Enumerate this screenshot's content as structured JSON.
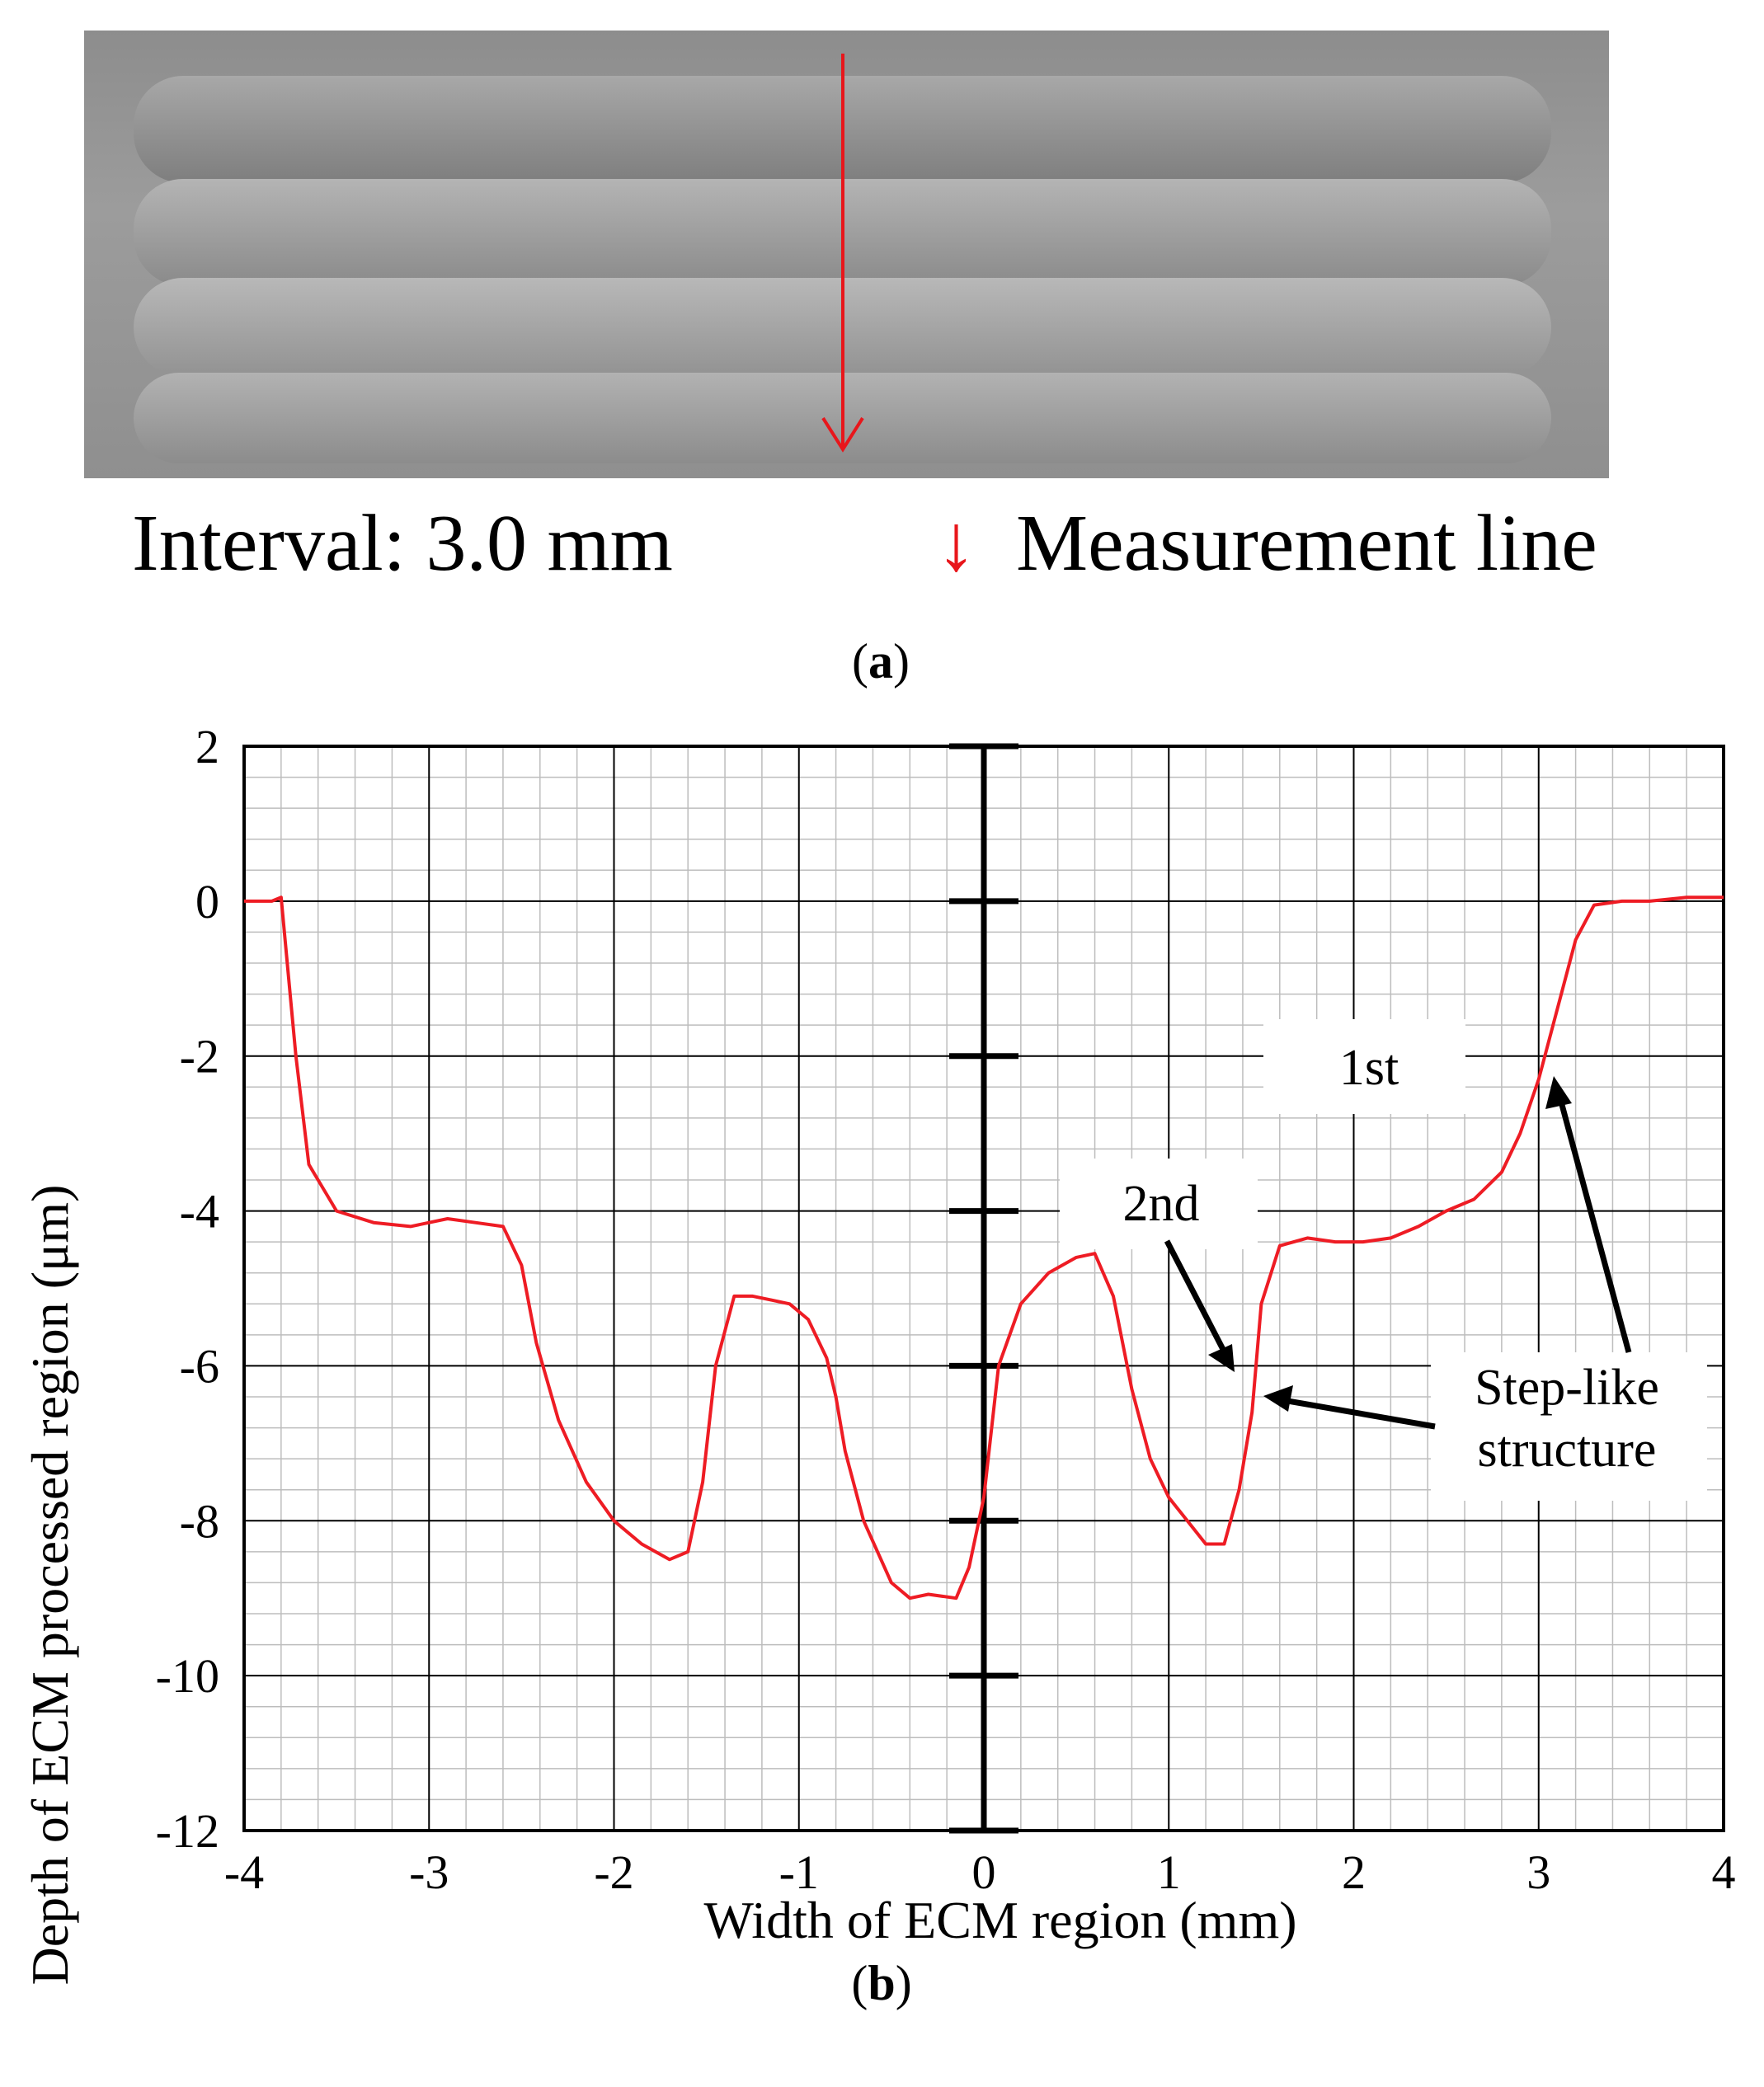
{
  "panel_a": {
    "label_letter": "a",
    "interval_text": "Interval: 3.0 mm",
    "arrow_glyph": "↓",
    "measurement_text": "Measurement line",
    "arrow_color": "#e8161b"
  },
  "panel_b": {
    "label_letter": "b"
  },
  "chart_data": {
    "type": "line",
    "title": "",
    "xlabel": "Width of ECM region (mm)",
    "ylabel": "Depth of ECM processed region (μm)",
    "xlim": [
      -4,
      4
    ],
    "ylim": [
      -12,
      2
    ],
    "xticks": [
      -4,
      -3,
      -2,
      -1,
      0,
      1,
      2,
      3,
      4
    ],
    "yticks": [
      2,
      0,
      -2,
      -4,
      -6,
      -8,
      -10,
      -12
    ],
    "grid": true,
    "center_axis_x": 0,
    "series": [
      {
        "color": "#ee1c24",
        "x": [
          -4.0,
          -3.85,
          -3.8,
          -3.72,
          -3.65,
          -3.5,
          -3.3,
          -3.1,
          -2.9,
          -2.75,
          -2.6,
          -2.5,
          -2.42,
          -2.3,
          -2.15,
          -2.0,
          -1.85,
          -1.7,
          -1.6,
          -1.52,
          -1.45,
          -1.35,
          -1.25,
          -1.15,
          -1.05,
          -0.95,
          -0.85,
          -0.8,
          -0.75,
          -0.65,
          -0.5,
          -0.4,
          -0.3,
          -0.15,
          -0.08,
          0.0,
          0.08,
          0.2,
          0.35,
          0.5,
          0.6,
          0.7,
          0.8,
          0.9,
          1.0,
          1.1,
          1.2,
          1.3,
          1.38,
          1.45,
          1.5,
          1.6,
          1.75,
          1.9,
          2.05,
          2.2,
          2.35,
          2.5,
          2.65,
          2.8,
          2.9,
          3.0,
          3.1,
          3.2,
          3.3,
          3.45,
          3.6,
          3.8,
          4.0
        ],
        "y": [
          0.0,
          0.0,
          0.05,
          -2.0,
          -3.4,
          -4.0,
          -4.15,
          -4.2,
          -4.1,
          -4.15,
          -4.2,
          -4.7,
          -5.7,
          -6.7,
          -7.5,
          -8.0,
          -8.3,
          -8.5,
          -8.4,
          -7.5,
          -6.0,
          -5.1,
          -5.1,
          -5.15,
          -5.2,
          -5.4,
          -5.9,
          -6.4,
          -7.1,
          -8.0,
          -8.8,
          -9.0,
          -8.95,
          -9.0,
          -8.6,
          -7.7,
          -6.0,
          -5.2,
          -4.8,
          -4.6,
          -4.55,
          -5.1,
          -6.3,
          -7.2,
          -7.7,
          -8.0,
          -8.3,
          -8.3,
          -7.6,
          -6.6,
          -5.2,
          -4.45,
          -4.35,
          -4.4,
          -4.4,
          -4.35,
          -4.2,
          -4.0,
          -3.85,
          -3.5,
          -3.0,
          -2.3,
          -1.4,
          -0.5,
          -0.05,
          0.0,
          0.0,
          0.05,
          0.05
        ]
      }
    ],
    "annotations": {
      "first": "1st",
      "second": "2nd",
      "step_line1": "Step-like",
      "step_line2": "structure"
    }
  }
}
